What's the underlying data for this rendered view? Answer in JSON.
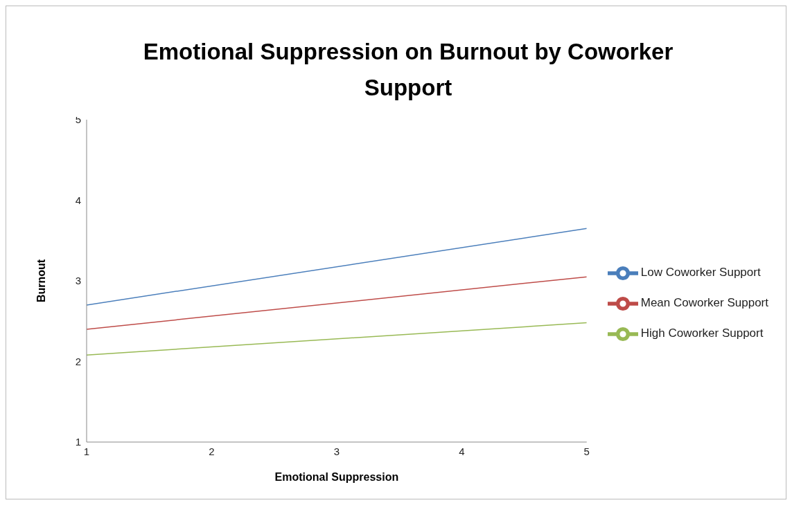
{
  "chart_data": {
    "type": "line",
    "title": "Emotional Suppression on Burnout by Coworker Support",
    "xlabel": "Emotional Suppression",
    "ylabel": "Burnout",
    "x": [
      1,
      5
    ],
    "series": [
      {
        "name": "Low Coworker Support",
        "color": "#4a7ebb",
        "values": [
          2.7,
          3.65
        ]
      },
      {
        "name": "Mean Coworker Support",
        "color": "#be4b48",
        "values": [
          2.4,
          3.05
        ]
      },
      {
        "name": "High Coworker Support",
        "color": "#98b954",
        "values": [
          2.08,
          2.48
        ]
      }
    ],
    "xlim": [
      1,
      5
    ],
    "xticks": [
      1,
      2,
      3,
      4,
      5
    ],
    "ylim": [
      1,
      5
    ],
    "yticks": [
      1,
      2,
      3,
      4,
      5
    ],
    "grid": false,
    "legend": "right",
    "marker": "none",
    "line_style": "solid"
  }
}
